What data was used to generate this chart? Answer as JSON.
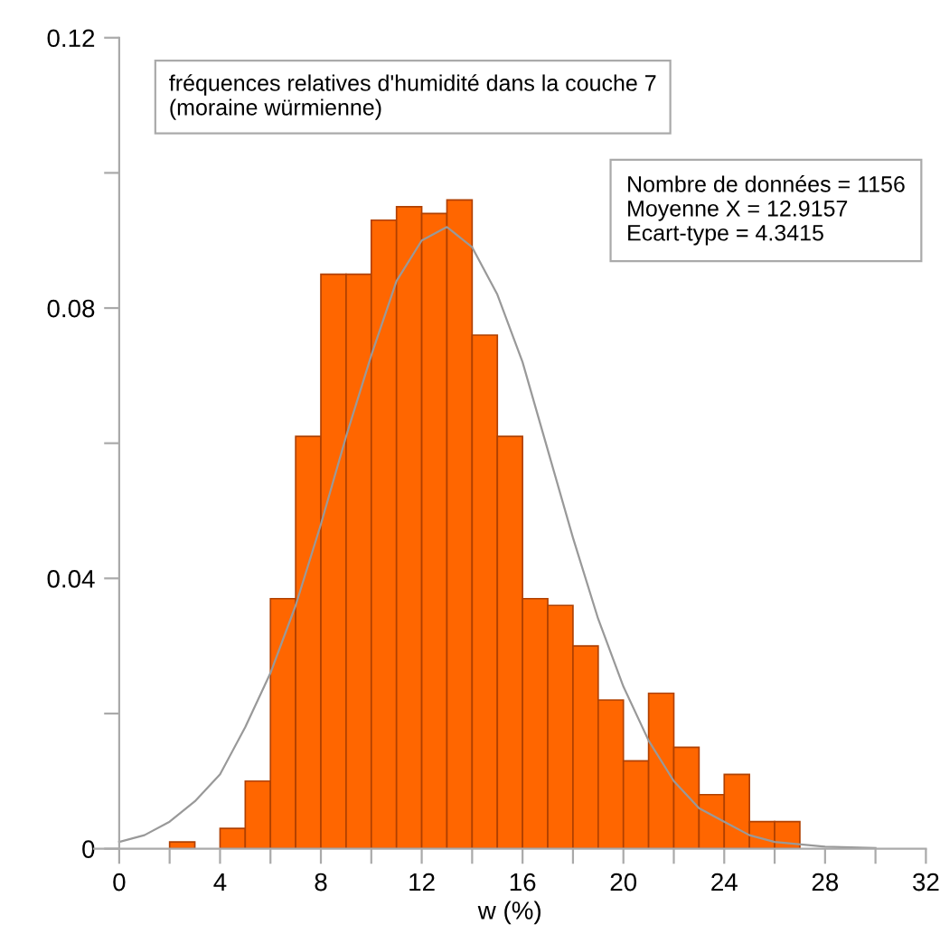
{
  "chart_data": {
    "type": "histogram",
    "title": "fréquences relatives d'humidité dans la couche 7\n(moraine würmienne)",
    "xlabel": "w (%)",
    "bins": [
      2,
      3,
      4,
      5,
      6,
      7,
      8,
      9,
      10,
      11,
      12,
      13,
      14,
      15,
      16,
      17,
      18,
      19,
      20,
      21,
      22,
      23,
      24,
      25,
      26,
      27
    ],
    "values": [
      0.001,
      0,
      0.003,
      0.01,
      0.037,
      0.061,
      0.085,
      0.085,
      0.093,
      0.095,
      0.094,
      0.096,
      0.076,
      0.061,
      0.037,
      0.036,
      0.03,
      0.022,
      0.013,
      0.023,
      0.015,
      0.008,
      0.011,
      0.004,
      0.004
    ],
    "color": "#ff6600",
    "series": [
      {
        "type": "line",
        "color": "#999999",
        "x": [
          0,
          1,
          2,
          3,
          4,
          5,
          6,
          7,
          8,
          9,
          10,
          11,
          12,
          13,
          14,
          15,
          16,
          17,
          18,
          19,
          20,
          21,
          22,
          23,
          24,
          25,
          26,
          28,
          30
        ],
        "values": [
          0.001,
          0.002,
          0.004,
          0.007,
          0.011,
          0.018,
          0.026,
          0.036,
          0.048,
          0.061,
          0.073,
          0.084,
          0.09,
          0.092,
          0.089,
          0.082,
          0.072,
          0.059,
          0.046,
          0.034,
          0.024,
          0.016,
          0.01,
          0.006,
          0.004,
          0.002,
          0.001,
          0.0003,
          0.0001
        ]
      }
    ],
    "annotations": [
      "Nombre de données = 1156\nMoyenne X = 12.9157\nEcart-type = 4.3415"
    ],
    "xlim": [
      -1,
      32
    ],
    "ylim": [
      0,
      0.12
    ],
    "xticks": [
      0,
      {
        "value": 2,
        "label": null
      },
      4,
      {
        "value": 6,
        "label": null
      },
      8,
      {
        "value": 10,
        "label": null
      },
      12,
      {
        "value": 14,
        "label": null
      },
      16,
      {
        "value": 18,
        "label": null
      },
      20,
      {
        "value": 22,
        "label": null
      },
      24,
      {
        "value": 26,
        "label": null
      },
      28,
      {
        "value": 30,
        "label": null
      },
      32
    ],
    "yticks": [
      0,
      {
        "value": 0.02,
        "label": null
      },
      0.04,
      {
        "value": 0.06,
        "label": null
      },
      0.08,
      {
        "value": 0.1,
        "label": null
      },
      0.12
    ],
    "grid": false,
    "legend": false
  }
}
